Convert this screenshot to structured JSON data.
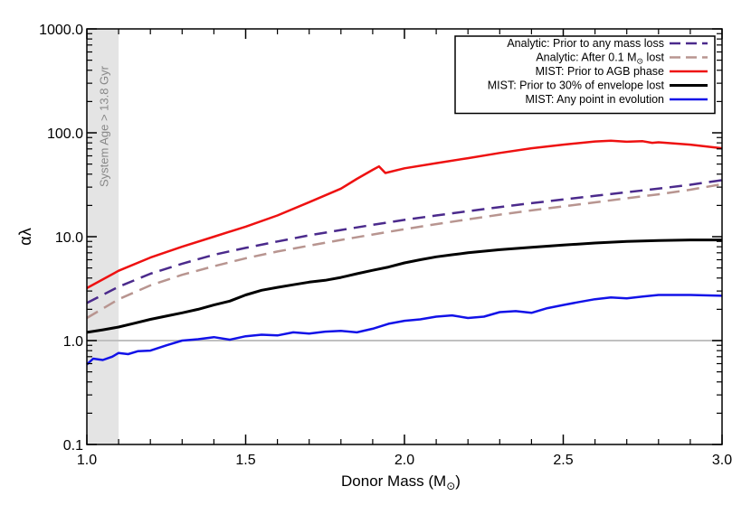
{
  "chart_data": {
    "type": "line",
    "xlabel": "Donor Mass (M",
    "xlabel_sub": "⊙",
    "xlabel_close": ")",
    "ylabel": "αλ",
    "xlim": [
      1.0,
      3.0
    ],
    "ylim": [
      0.1,
      1000.0
    ],
    "yscale": "log",
    "x_ticks": [
      {
        "v": 1.0,
        "label": "1.0"
      },
      {
        "v": 1.5,
        "label": "1.5"
      },
      {
        "v": 2.0,
        "label": "2.0"
      },
      {
        "v": 2.5,
        "label": "2.5"
      },
      {
        "v": 3.0,
        "label": "3.0"
      }
    ],
    "y_ticks": [
      {
        "v": 0.1,
        "label": "0.1"
      },
      {
        "v": 1.0,
        "label": "1.0"
      },
      {
        "v": 10.0,
        "label": "10.0"
      },
      {
        "v": 100.0,
        "label": "100.0"
      },
      {
        "v": 1000.0,
        "label": "1000.0"
      }
    ],
    "x_minor_step": 0.1,
    "reference_line": {
      "y": 1.0,
      "color": "#c0c0c0"
    },
    "shaded_region": {
      "x0": 1.0,
      "x1": 1.1,
      "color": "#e4e4e4",
      "label": "System Age > 13.8 Gyr",
      "label_color": "#888888"
    },
    "legend_position": "top-right",
    "series": [
      {
        "name": "Analytic: Prior to any mass loss",
        "color": "#4b2a8c",
        "dash": "14 8",
        "width": 2.5,
        "x": [
          1.0,
          1.1,
          1.2,
          1.3,
          1.4,
          1.5,
          1.6,
          1.7,
          1.8,
          1.9,
          2.0,
          2.1,
          2.2,
          2.3,
          2.4,
          2.5,
          2.6,
          2.7,
          2.8,
          2.9,
          3.0
        ],
        "y": [
          2.3,
          3.3,
          4.4,
          5.5,
          6.7,
          7.8,
          9.0,
          10.3,
          11.6,
          13.0,
          14.5,
          16.0,
          17.6,
          19.3,
          21.0,
          22.8,
          24.7,
          26.8,
          29.0,
          31.6,
          35.0
        ]
      },
      {
        "name": "Analytic: After 0.1 M",
        "name_sub": "⊙",
        "name_suffix": " lost",
        "color": "#b89590",
        "dash": "14 8",
        "width": 2.5,
        "x": [
          1.0,
          1.1,
          1.2,
          1.3,
          1.4,
          1.5,
          1.6,
          1.7,
          1.8,
          1.9,
          2.0,
          2.1,
          2.2,
          2.3,
          2.4,
          2.5,
          2.6,
          2.7,
          2.8,
          2.9,
          3.0
        ],
        "y": [
          1.65,
          2.5,
          3.4,
          4.3,
          5.2,
          6.2,
          7.2,
          8.2,
          9.3,
          10.5,
          11.8,
          13.2,
          14.7,
          16.3,
          17.9,
          19.6,
          21.4,
          23.4,
          25.6,
          28.3,
          32.0
        ]
      },
      {
        "name": "MIST: Prior to AGB phase",
        "color": "#ee1111",
        "dash": "",
        "width": 2.5,
        "x": [
          1.0,
          1.1,
          1.2,
          1.3,
          1.4,
          1.5,
          1.6,
          1.7,
          1.8,
          1.85,
          1.9,
          1.92,
          1.94,
          2.0,
          2.1,
          2.2,
          2.3,
          2.4,
          2.5,
          2.6,
          2.65,
          2.7,
          2.75,
          2.78,
          2.8,
          2.9,
          3.0
        ],
        "y": [
          3.2,
          4.7,
          6.3,
          8.0,
          10.0,
          12.5,
          16.0,
          21.5,
          29.0,
          36.0,
          44.0,
          47.5,
          41.0,
          45.5,
          51.0,
          57.0,
          64.0,
          71.0,
          77.0,
          82.5,
          84.0,
          82.0,
          83.0,
          80.0,
          81.0,
          77.0,
          71.0
        ]
      },
      {
        "name": "MIST: Prior to 30% of envelope lost",
        "color": "#000000",
        "dash": "",
        "width": 3,
        "x": [
          1.0,
          1.05,
          1.1,
          1.15,
          1.2,
          1.25,
          1.3,
          1.35,
          1.4,
          1.45,
          1.5,
          1.55,
          1.6,
          1.65,
          1.7,
          1.75,
          1.8,
          1.85,
          1.9,
          1.95,
          2.0,
          2.05,
          2.1,
          2.15,
          2.2,
          2.3,
          2.4,
          2.5,
          2.6,
          2.7,
          2.8,
          2.9,
          3.0
        ],
        "y": [
          1.2,
          1.27,
          1.35,
          1.47,
          1.6,
          1.72,
          1.85,
          2.0,
          2.2,
          2.4,
          2.75,
          3.05,
          3.25,
          3.45,
          3.65,
          3.8,
          4.05,
          4.4,
          4.75,
          5.1,
          5.6,
          6.0,
          6.4,
          6.7,
          7.0,
          7.5,
          7.9,
          8.3,
          8.7,
          9.0,
          9.2,
          9.3,
          9.3
        ]
      },
      {
        "name": "MIST: Any point in evolution",
        "color": "#1212e8",
        "dash": "",
        "width": 2.5,
        "x": [
          1.0,
          1.02,
          1.05,
          1.08,
          1.1,
          1.13,
          1.16,
          1.2,
          1.25,
          1.3,
          1.35,
          1.4,
          1.45,
          1.5,
          1.55,
          1.6,
          1.65,
          1.7,
          1.75,
          1.8,
          1.85,
          1.9,
          1.95,
          2.0,
          2.05,
          2.1,
          2.15,
          2.2,
          2.25,
          2.3,
          2.35,
          2.4,
          2.45,
          2.5,
          2.55,
          2.6,
          2.65,
          2.7,
          2.75,
          2.8,
          2.9,
          3.0
        ],
        "y": [
          0.59,
          0.67,
          0.65,
          0.7,
          0.76,
          0.74,
          0.79,
          0.8,
          0.9,
          1.0,
          1.03,
          1.08,
          1.02,
          1.1,
          1.14,
          1.12,
          1.2,
          1.17,
          1.22,
          1.24,
          1.2,
          1.3,
          1.45,
          1.55,
          1.6,
          1.7,
          1.75,
          1.65,
          1.7,
          1.88,
          1.92,
          1.85,
          2.05,
          2.2,
          2.35,
          2.5,
          2.6,
          2.55,
          2.65,
          2.75,
          2.75,
          2.7
        ]
      }
    ]
  }
}
